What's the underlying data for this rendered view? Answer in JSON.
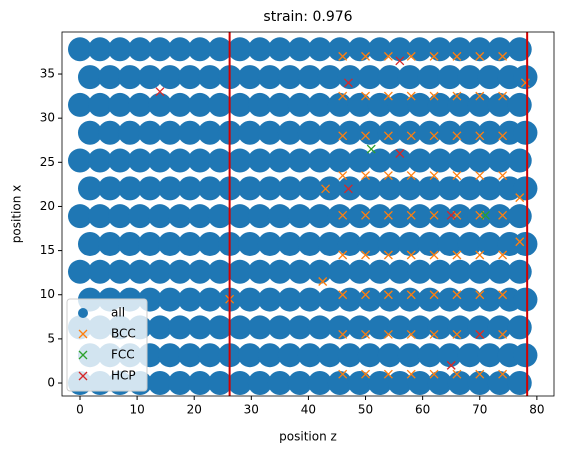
{
  "chart_data": {
    "type": "scatter",
    "title": "strain: 0.976",
    "xlabel": "position z",
    "ylabel": "position x",
    "xlim": [
      -3.15,
      83
    ],
    "ylim": [
      -1.47,
      39.76
    ],
    "xticks": [
      0,
      10,
      20,
      30,
      40,
      50,
      60,
      70,
      80
    ],
    "yticks": [
      0,
      5,
      10,
      15,
      20,
      25,
      30,
      35
    ],
    "legend_loc": "lower left",
    "vlines": {
      "color": "#d40000",
      "values": [
        26.2,
        78.3
      ]
    },
    "series": [
      {
        "name": "all",
        "color": "#1f77b4",
        "marker": "circle",
        "x": [
          0,
          3.5,
          7,
          10.5,
          14,
          17.5,
          21,
          24.5,
          28,
          31.5,
          35,
          38.5,
          42,
          45.5,
          49,
          52.5,
          56,
          59.5,
          63,
          66.5,
          70,
          73.5,
          77,
          1.75,
          5.25,
          8.75,
          12.25,
          15.75,
          19.25,
          22.75,
          26.25,
          29.75,
          33.25,
          36.75,
          40.25,
          43.75,
          47.25,
          50.75,
          54.25,
          57.75,
          61.25,
          64.75,
          68.25,
          71.75,
          75.25,
          78,
          0,
          3.5,
          7,
          10.5,
          14,
          17.5,
          21,
          24.5,
          28,
          31.5,
          35,
          38.5,
          42,
          45.5,
          49,
          52.5,
          56,
          59.5,
          63,
          66.5,
          70,
          73.5,
          77,
          1.75,
          5.25,
          8.75,
          12.25,
          15.75,
          19.25,
          22.75,
          26.25,
          29.75,
          33.25,
          36.75,
          40.25,
          43.75,
          47.25,
          50.75,
          54.25,
          57.75,
          61.25,
          64.75,
          68.25,
          71.75,
          75.25,
          78,
          0,
          3.5,
          7,
          10.5,
          14,
          17.5,
          21,
          24.5,
          28,
          31.5,
          35,
          38.5,
          42,
          45.5,
          49,
          52.5,
          56,
          59.5,
          63,
          66.5,
          70,
          73.5,
          77,
          1.75,
          5.25,
          8.75,
          12.25,
          15.75,
          19.25,
          22.75,
          26.25,
          29.75,
          33.25,
          36.75,
          40.25,
          43.75,
          47.25,
          50.75,
          54.25,
          57.75,
          61.25,
          64.75,
          68.25,
          71.75,
          75.25,
          78,
          0,
          3.5,
          7,
          10.5,
          14,
          17.5,
          21,
          24.5,
          28,
          31.5,
          35,
          38.5,
          42,
          45.5,
          49,
          52.5,
          56,
          59.5,
          63,
          66.5,
          70,
          73.5,
          77,
          1.75,
          5.25,
          8.75,
          12.25,
          15.75,
          19.25,
          22.75,
          26.25,
          29.75,
          33.25,
          36.75,
          40.25,
          43.75,
          47.25,
          50.75,
          54.25,
          57.75,
          61.25,
          64.75,
          68.25,
          71.75,
          75.25,
          78,
          0,
          3.5,
          7,
          10.5,
          14,
          17.5,
          21,
          24.5,
          28,
          31.5,
          35,
          38.5,
          42,
          45.5,
          49,
          52.5,
          56,
          59.5,
          63,
          66.5,
          70,
          73.5,
          77,
          1.75,
          5.25,
          8.75,
          12.25,
          15.75,
          19.25,
          22.75,
          26.25,
          29.75,
          33.25,
          36.75,
          40.25,
          43.75,
          47.25,
          50.75,
          54.25,
          57.75,
          61.25,
          64.75,
          68.25,
          71.75,
          75.25,
          78,
          0,
          3.5,
          7,
          10.5,
          14,
          17.5,
          21,
          24.5,
          28,
          31.5,
          35,
          38.5,
          42,
          45.5,
          49,
          52.5,
          56,
          59.5,
          63,
          66.5,
          70,
          73.5,
          77,
          1.75,
          5.25,
          8.75,
          12.25,
          15.75,
          19.25,
          22.75,
          26.25,
          29.75,
          33.25,
          36.75,
          40.25,
          43.75,
          47.25,
          50.75,
          54.25,
          57.75,
          61.25,
          64.75,
          68.25,
          71.75,
          75.25,
          78,
          0,
          3.5,
          7,
          10.5,
          14,
          17.5,
          21,
          24.5,
          28,
          31.5,
          35,
          38.5,
          42,
          45.5,
          49,
          52.5,
          56,
          59.5,
          63,
          66.5,
          70,
          73.5,
          77
        ],
        "values": [
          0,
          0,
          0,
          0,
          0,
          0,
          0,
          0,
          0,
          0,
          0,
          0,
          0,
          0,
          0,
          0,
          0,
          0,
          0,
          0,
          0,
          0,
          0,
          3.15,
          3.15,
          3.15,
          3.15,
          3.15,
          3.15,
          3.15,
          3.15,
          3.15,
          3.15,
          3.15,
          3.15,
          3.15,
          3.15,
          3.15,
          3.15,
          3.15,
          3.15,
          3.15,
          3.15,
          3.15,
          3.15,
          3.15,
          6.3,
          6.3,
          6.3,
          6.3,
          6.3,
          6.3,
          6.3,
          6.3,
          6.3,
          6.3,
          6.3,
          6.3,
          6.3,
          6.3,
          6.3,
          6.3,
          6.3,
          6.3,
          6.3,
          6.3,
          6.3,
          6.3,
          6.3,
          9.45,
          9.45,
          9.45,
          9.45,
          9.45,
          9.45,
          9.45,
          9.45,
          9.45,
          9.45,
          9.45,
          9.45,
          9.45,
          9.45,
          9.45,
          9.45,
          9.45,
          9.45,
          9.45,
          9.45,
          9.45,
          9.45,
          9.45,
          12.6,
          12.6,
          12.6,
          12.6,
          12.6,
          12.6,
          12.6,
          12.6,
          12.6,
          12.6,
          12.6,
          12.6,
          12.6,
          12.6,
          12.6,
          12.6,
          12.6,
          12.6,
          12.6,
          12.6,
          12.6,
          12.6,
          12.6,
          15.75,
          15.75,
          15.75,
          15.75,
          15.75,
          15.75,
          15.75,
          15.75,
          15.75,
          15.75,
          15.75,
          15.75,
          15.75,
          15.75,
          15.75,
          15.75,
          15.75,
          15.75,
          15.75,
          15.75,
          15.75,
          15.75,
          15.75,
          18.9,
          18.9,
          18.9,
          18.9,
          18.9,
          18.9,
          18.9,
          18.9,
          18.9,
          18.9,
          18.9,
          18.9,
          18.9,
          18.9,
          18.9,
          18.9,
          18.9,
          18.9,
          18.9,
          18.9,
          18.9,
          18.9,
          18.9,
          22.05,
          22.05,
          22.05,
          22.05,
          22.05,
          22.05,
          22.05,
          22.05,
          22.05,
          22.05,
          22.05,
          22.05,
          22.05,
          22.05,
          22.05,
          22.05,
          22.05,
          22.05,
          22.05,
          22.05,
          22.05,
          22.05,
          22.05,
          25.2,
          25.2,
          25.2,
          25.2,
          25.2,
          25.2,
          25.2,
          25.2,
          25.2,
          25.2,
          25.2,
          25.2,
          25.2,
          25.2,
          25.2,
          25.2,
          25.2,
          25.2,
          25.2,
          25.2,
          25.2,
          25.2,
          25.2,
          28.35,
          28.35,
          28.35,
          28.35,
          28.35,
          28.35,
          28.35,
          28.35,
          28.35,
          28.35,
          28.35,
          28.35,
          28.35,
          28.35,
          28.35,
          28.35,
          28.35,
          28.35,
          28.35,
          28.35,
          28.35,
          28.35,
          28.35,
          31.5,
          31.5,
          31.5,
          31.5,
          31.5,
          31.5,
          31.5,
          31.5,
          31.5,
          31.5,
          31.5,
          31.5,
          31.5,
          31.5,
          31.5,
          31.5,
          31.5,
          31.5,
          31.5,
          31.5,
          31.5,
          31.5,
          31.5,
          34.65,
          34.65,
          34.65,
          34.65,
          34.65,
          34.65,
          34.65,
          34.65,
          34.65,
          34.65,
          34.65,
          34.65,
          34.65,
          34.65,
          34.65,
          34.65,
          34.65,
          34.65,
          34.65,
          34.65,
          34.65,
          34.65,
          34.65,
          37.8,
          37.8,
          37.8,
          37.8,
          37.8,
          37.8,
          37.8,
          37.8,
          37.8,
          37.8,
          37.8,
          37.8,
          37.8,
          37.8,
          37.8,
          37.8,
          37.8,
          37.8,
          37.8,
          37.8,
          37.8,
          37.8,
          37.8
        ]
      },
      {
        "name": "BCC",
        "color": "#ff7f0e",
        "marker": "x",
        "x": [
          46,
          46,
          46,
          46,
          46,
          46,
          46,
          46,
          46,
          50,
          50,
          50,
          50,
          50,
          50,
          50,
          50,
          50,
          54,
          54,
          54,
          54,
          54,
          54,
          54,
          54,
          54,
          58,
          58,
          58,
          58,
          58,
          58,
          58,
          58,
          58,
          62,
          62,
          62,
          62,
          62,
          62,
          62,
          62,
          62,
          66,
          66,
          66,
          66,
          66,
          66,
          66,
          66,
          66,
          70,
          70,
          70,
          70,
          70,
          70,
          70,
          70,
          70,
          74,
          74,
          74,
          74,
          74,
          74,
          74,
          74,
          74,
          26.2,
          43,
          42.5,
          77,
          77,
          78
        ],
        "values": [
          1,
          5.5,
          10,
          14.5,
          19,
          23.5,
          28,
          32.5,
          37,
          1,
          5.5,
          10,
          14.5,
          19,
          23.5,
          28,
          32.5,
          37,
          1,
          5.5,
          10,
          14.5,
          19,
          23.5,
          28,
          32.5,
          37,
          1,
          5.5,
          10,
          14.5,
          19,
          23.5,
          28,
          32.5,
          37,
          1,
          5.5,
          10,
          14.5,
          19,
          23.5,
          28,
          32.5,
          37,
          1,
          5.5,
          10,
          14.5,
          19,
          23.5,
          28,
          32.5,
          37,
          1,
          5.5,
          10,
          14.5,
          19,
          23.5,
          28,
          32.5,
          37,
          1,
          5.5,
          10,
          14.5,
          19,
          23.5,
          28,
          32.5,
          37,
          9.5,
          22,
          11.5,
          16,
          21,
          34
        ]
      },
      {
        "name": "FCC",
        "color": "#2ca02c",
        "marker": "x",
        "x": [
          51,
          71
        ],
        "values": [
          26.5,
          19
        ]
      },
      {
        "name": "HCP",
        "color": "#d62728",
        "marker": "x",
        "x": [
          14,
          56,
          47,
          47,
          56,
          65,
          70,
          65
        ],
        "values": [
          33,
          36.5,
          34,
          22,
          26,
          19,
          5.5,
          2
        ]
      }
    ]
  }
}
